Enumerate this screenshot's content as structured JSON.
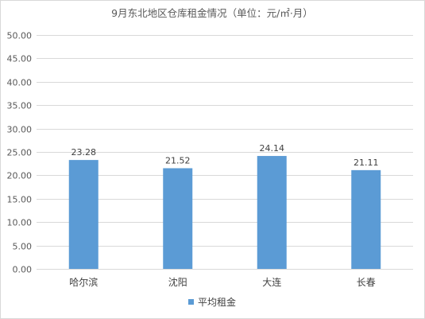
{
  "chart_data": {
    "type": "bar",
    "title": "9月东北地区仓库租金情况（单位：元/㎡·月）",
    "categories": [
      "哈尔滨",
      "沈阳",
      "大连",
      "长春"
    ],
    "series": [
      {
        "name": "平均租金",
        "values": [
          23.28,
          21.52,
          24.14,
          21.11
        ],
        "color": "#5b9bd5"
      }
    ],
    "data_labels": [
      "23.28",
      "21.52",
      "24.14",
      "21.11"
    ],
    "ylim": [
      0,
      50
    ],
    "yticks": [
      "0.00",
      "5.00",
      "10.00",
      "15.00",
      "20.00",
      "25.00",
      "30.00",
      "35.00",
      "40.00",
      "45.00",
      "50.00"
    ],
    "grid": true,
    "legend_position": "bottom",
    "xlabel": "",
    "ylabel": ""
  }
}
